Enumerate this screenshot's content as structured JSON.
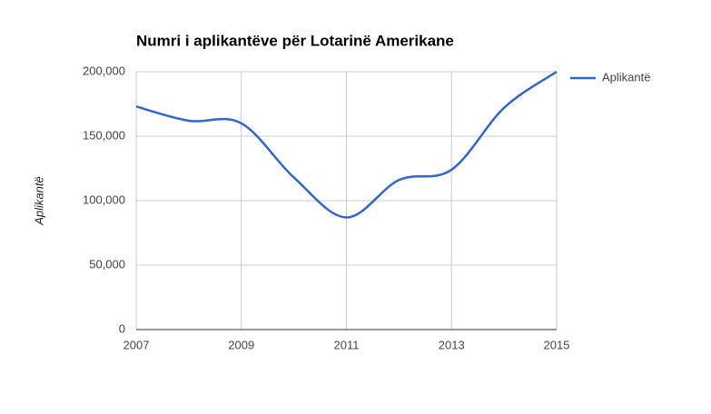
{
  "chart_data": {
    "type": "line",
    "title": "Numri i aplikantëve për Lotarinë Amerikane",
    "y_label": "Aplikantë",
    "x": [
      2007,
      2008,
      2009,
      2010,
      2011,
      2012,
      2013,
      2014,
      2015
    ],
    "series": [
      {
        "name": "Aplikantë",
        "color": "#3366cc",
        "values": [
          173000,
          162000,
          160000,
          118000,
          87000,
          116000,
          124000,
          172000,
          200000
        ]
      }
    ],
    "xlim": [
      2007,
      2015
    ],
    "xticks": [
      2007,
      2009,
      2011,
      2013,
      2015
    ],
    "ylim": [
      0,
      200000
    ],
    "yticks": [
      0,
      {
        "value": 50000,
        "label": "50,000"
      },
      {
        "value": 100000,
        "label": "100,000"
      },
      {
        "value": 150000,
        "label": "150,000"
      },
      {
        "value": 200000,
        "label": "200,000"
      }
    ],
    "grid": true,
    "legend": "right"
  }
}
